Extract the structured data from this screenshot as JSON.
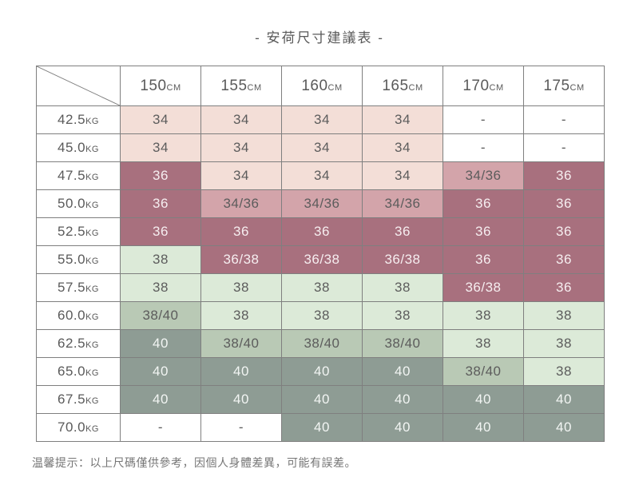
{
  "title": "- 安荷尺寸建議表 -",
  "footer": "温馨提示：以上尺碼僅供參考，因個人身體差異，可能有誤差。",
  "palette": {
    "pink": {
      "bg": "#f3ded7",
      "fg": "#5c5c5c"
    },
    "rose": {
      "bg": "#d3a4aa",
      "fg": "#5c5c5c"
    },
    "dark-rose": {
      "bg": "#a8707e",
      "fg": "#f6eef0"
    },
    "green-light": {
      "bg": "#dcead8",
      "fg": "#5c5c5c"
    },
    "green-mid": {
      "bg": "#b9c9b5",
      "fg": "#5c5c5c"
    },
    "green-dark": {
      "bg": "#8e9c94",
      "fg": "#f2f5f3"
    },
    "plain": {
      "bg": "#ffffff",
      "fg": "#5c5c5c"
    }
  },
  "table": {
    "col_unit": "CM",
    "row_unit": "KG",
    "columns": [
      "150",
      "155",
      "160",
      "165",
      "170",
      "175"
    ],
    "rows": [
      {
        "weight": "42.5",
        "cells": [
          {
            "v": "34",
            "c": "pink"
          },
          {
            "v": "34",
            "c": "pink"
          },
          {
            "v": "34",
            "c": "pink"
          },
          {
            "v": "34",
            "c": "pink"
          },
          {
            "v": "-",
            "c": "plain"
          },
          {
            "v": "-",
            "c": "plain"
          }
        ]
      },
      {
        "weight": "45.0",
        "cells": [
          {
            "v": "34",
            "c": "pink"
          },
          {
            "v": "34",
            "c": "pink"
          },
          {
            "v": "34",
            "c": "pink"
          },
          {
            "v": "34",
            "c": "pink"
          },
          {
            "v": "-",
            "c": "plain"
          },
          {
            "v": "-",
            "c": "plain"
          }
        ]
      },
      {
        "weight": "47.5",
        "cells": [
          {
            "v": "36",
            "c": "dark-rose"
          },
          {
            "v": "34",
            "c": "pink"
          },
          {
            "v": "34",
            "c": "pink"
          },
          {
            "v": "34",
            "c": "pink"
          },
          {
            "v": "34/36",
            "c": "rose"
          },
          {
            "v": "36",
            "c": "dark-rose"
          }
        ]
      },
      {
        "weight": "50.0",
        "cells": [
          {
            "v": "36",
            "c": "dark-rose"
          },
          {
            "v": "34/36",
            "c": "rose"
          },
          {
            "v": "34/36",
            "c": "rose"
          },
          {
            "v": "34/36",
            "c": "rose"
          },
          {
            "v": "36",
            "c": "dark-rose"
          },
          {
            "v": "36",
            "c": "dark-rose"
          }
        ]
      },
      {
        "weight": "52.5",
        "cells": [
          {
            "v": "36",
            "c": "dark-rose"
          },
          {
            "v": "36",
            "c": "dark-rose"
          },
          {
            "v": "36",
            "c": "dark-rose"
          },
          {
            "v": "36",
            "c": "dark-rose"
          },
          {
            "v": "36",
            "c": "dark-rose"
          },
          {
            "v": "36",
            "c": "dark-rose"
          }
        ]
      },
      {
        "weight": "55.0",
        "cells": [
          {
            "v": "38",
            "c": "green-light"
          },
          {
            "v": "36/38",
            "c": "dark-rose"
          },
          {
            "v": "36/38",
            "c": "dark-rose"
          },
          {
            "v": "36/38",
            "c": "dark-rose"
          },
          {
            "v": "36",
            "c": "dark-rose"
          },
          {
            "v": "36",
            "c": "dark-rose"
          }
        ]
      },
      {
        "weight": "57.5",
        "cells": [
          {
            "v": "38",
            "c": "green-light"
          },
          {
            "v": "38",
            "c": "green-light"
          },
          {
            "v": "38",
            "c": "green-light"
          },
          {
            "v": "38",
            "c": "green-light"
          },
          {
            "v": "36/38",
            "c": "dark-rose"
          },
          {
            "v": "36",
            "c": "dark-rose"
          }
        ]
      },
      {
        "weight": "60.0",
        "cells": [
          {
            "v": "38/40",
            "c": "green-mid"
          },
          {
            "v": "38",
            "c": "green-light"
          },
          {
            "v": "38",
            "c": "green-light"
          },
          {
            "v": "38",
            "c": "green-light"
          },
          {
            "v": "38",
            "c": "green-light"
          },
          {
            "v": "38",
            "c": "green-light"
          }
        ]
      },
      {
        "weight": "62.5",
        "cells": [
          {
            "v": "40",
            "c": "green-dark"
          },
          {
            "v": "38/40",
            "c": "green-mid"
          },
          {
            "v": "38/40",
            "c": "green-mid"
          },
          {
            "v": "38/40",
            "c": "green-mid"
          },
          {
            "v": "38",
            "c": "green-light"
          },
          {
            "v": "38",
            "c": "green-light"
          }
        ]
      },
      {
        "weight": "65.0",
        "cells": [
          {
            "v": "40",
            "c": "green-dark"
          },
          {
            "v": "40",
            "c": "green-dark"
          },
          {
            "v": "40",
            "c": "green-dark"
          },
          {
            "v": "40",
            "c": "green-dark"
          },
          {
            "v": "38/40",
            "c": "green-mid"
          },
          {
            "v": "38",
            "c": "green-light"
          }
        ]
      },
      {
        "weight": "67.5",
        "cells": [
          {
            "v": "40",
            "c": "green-dark"
          },
          {
            "v": "40",
            "c": "green-dark"
          },
          {
            "v": "40",
            "c": "green-dark"
          },
          {
            "v": "40",
            "c": "green-dark"
          },
          {
            "v": "40",
            "c": "green-dark"
          },
          {
            "v": "40",
            "c": "green-dark"
          }
        ]
      },
      {
        "weight": "70.0",
        "cells": [
          {
            "v": "-",
            "c": "plain"
          },
          {
            "v": "-",
            "c": "plain"
          },
          {
            "v": "40",
            "c": "green-dark"
          },
          {
            "v": "40",
            "c": "green-dark"
          },
          {
            "v": "40",
            "c": "green-dark"
          },
          {
            "v": "40",
            "c": "green-dark"
          }
        ]
      }
    ]
  }
}
